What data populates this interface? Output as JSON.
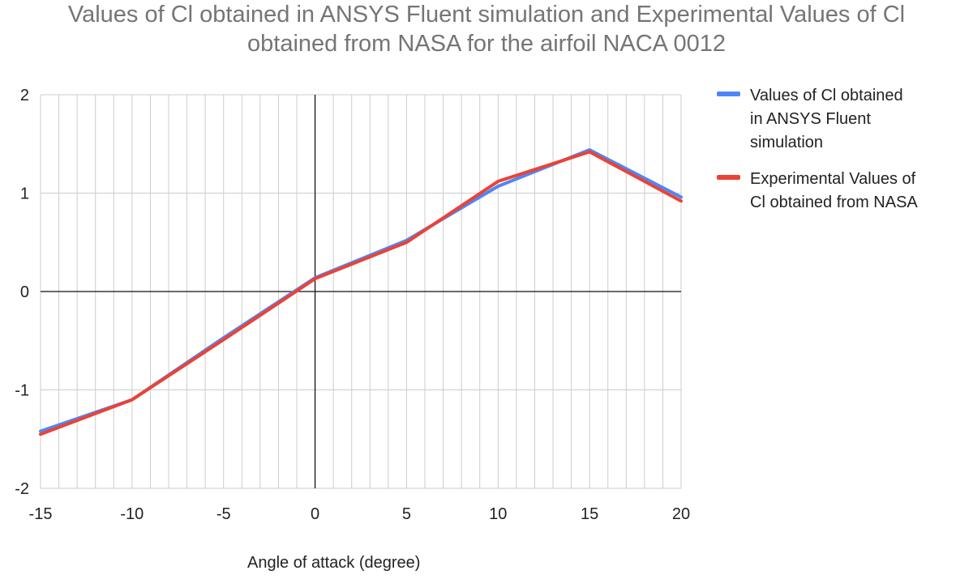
{
  "colors": {
    "series1": "#4f86f7",
    "series2": "#ea4335",
    "grid": "#cccccc",
    "zero_axis": "#111111",
    "title": "#757575"
  },
  "chart_data": {
    "type": "line",
    "title_lines": [
      "Values of Cl obtained in ANSYS Fluent simulation and Experimental Values of Cl",
      "obtained from NASA for the airfoil NACA 0012"
    ],
    "xlabel": "Angle of attack (degree)",
    "ylabel": "",
    "xlim": [
      -15,
      20
    ],
    "ylim": [
      -2,
      2
    ],
    "x_ticks": [
      -15,
      -10,
      -5,
      0,
      5,
      10,
      15,
      20
    ],
    "y_ticks": [
      -2,
      -1,
      0,
      1,
      2
    ],
    "grid": true,
    "legend_position": "right",
    "x": [
      -15,
      -10,
      -5,
      0,
      5,
      10,
      15,
      20
    ],
    "series": [
      {
        "name": "Values of Cl obtained in ANSYS Fluent simulation",
        "values": [
          -1.42,
          -1.1,
          -0.47,
          0.14,
          0.52,
          1.07,
          1.44,
          0.96
        ]
      },
      {
        "name": "Experimental Values of Cl obtained from NASA",
        "values": [
          -1.45,
          -1.1,
          -0.49,
          0.13,
          0.5,
          1.12,
          1.42,
          0.92
        ]
      }
    ]
  },
  "legend": {
    "item1_lines": [
      "Values of Cl obtained",
      "in ANSYS Fluent",
      "simulation"
    ],
    "item2_lines": [
      "Experimental Values of",
      "Cl obtained from NASA"
    ]
  }
}
